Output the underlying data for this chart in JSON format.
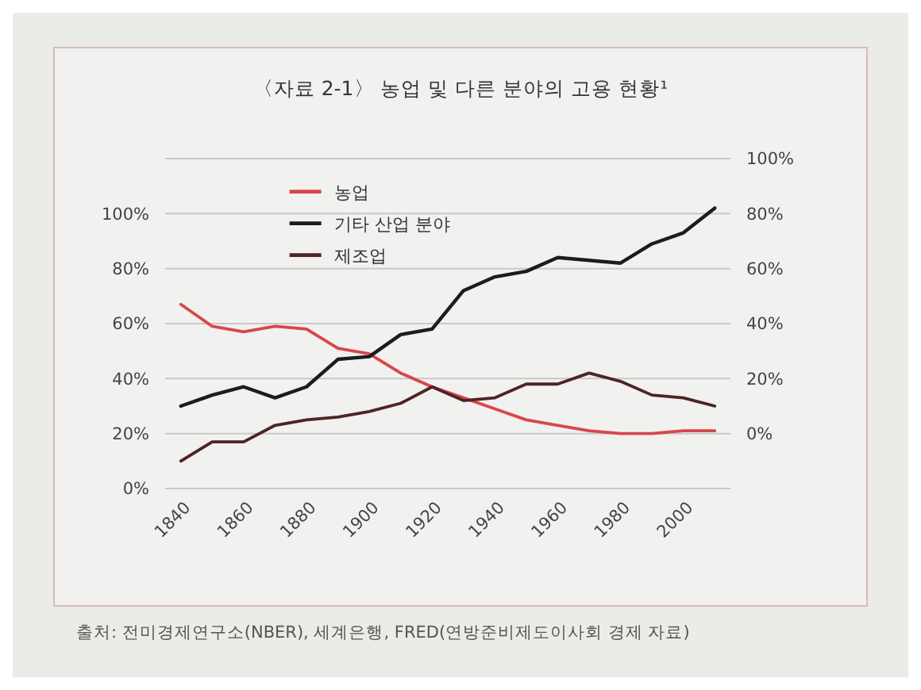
{
  "chart_data": {
    "type": "line",
    "title": "〈자료 2-1〉 농업 및 다른 분야의 고용 현황¹",
    "categories": [
      "1840",
      null,
      "1860",
      null,
      "1880",
      null,
      "1900",
      null,
      "1920",
      null,
      "1940",
      null,
      "1960",
      null,
      "1980",
      null,
      "2000",
      null
    ],
    "series": [
      {
        "name": "농업",
        "color": "#d9464b",
        "values": [
          67,
          59,
          57,
          59,
          58,
          51,
          49,
          42,
          37,
          33,
          29,
          25,
          23,
          21,
          20,
          20,
          21,
          21
        ]
      },
      {
        "name": "기타 산업 분야",
        "color": "#1c1c1c",
        "axis": "y2",
        "values": [
          10,
          14,
          17,
          13,
          17,
          27,
          28,
          36,
          38,
          52,
          57,
          59,
          64,
          63,
          62,
          69,
          73,
          82
        ]
      },
      {
        "name": "제조업",
        "color": "#4e2426",
        "values": [
          10,
          17,
          17,
          23,
          25,
          26,
          28,
          31,
          37,
          32,
          33,
          38,
          38,
          42,
          39,
          34,
          33,
          30
        ]
      }
    ],
    "ylim": [
      0,
      120
    ],
    "yticks": [
      {
        "value": 0,
        "label": "0%"
      },
      {
        "value": 20,
        "label": "20%"
      },
      {
        "value": 40,
        "label": "40%"
      },
      {
        "value": 60,
        "label": "60%"
      },
      {
        "value": 80,
        "label": "80%"
      },
      {
        "value": 100,
        "label": "100%"
      }
    ],
    "y2lim": [
      -20,
      100
    ],
    "y2ticks": [
      {
        "value": 0,
        "label": "0%"
      },
      {
        "value": 20,
        "label": "20%"
      },
      {
        "value": 40,
        "label": "40%"
      },
      {
        "value": 60,
        "label": "60%"
      },
      {
        "value": 80,
        "label": "80%"
      },
      {
        "value": 100,
        "label": "100%"
      }
    ],
    "grid": "y",
    "legend": "top left",
    "annotations": [
      "출처: 전미경제연구소(NBER), 세계은행, FRED(연방준비제도이사회 경제 자료)"
    ]
  }
}
